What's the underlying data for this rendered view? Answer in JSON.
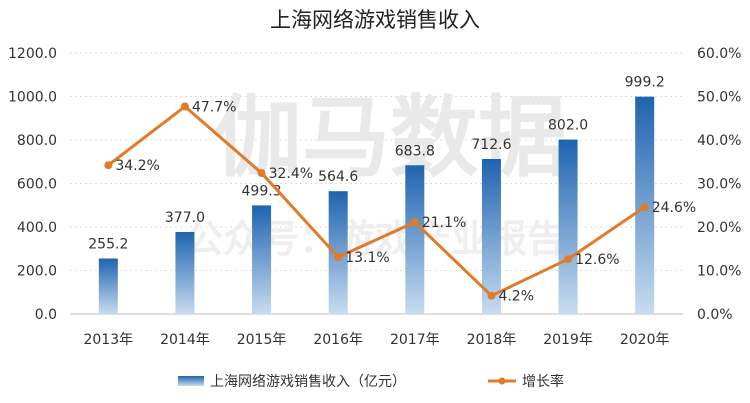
{
  "chart_data": {
    "type": "bar+line",
    "title": "上海网络游戏销售收入",
    "categories": [
      "2013年",
      "2014年",
      "2015年",
      "2016年",
      "2017年",
      "2018年",
      "2019年",
      "2020年"
    ],
    "series": [
      {
        "name": "上海网络游戏销售收入（亿元）",
        "type": "bar",
        "axis": "left",
        "values": [
          255.2,
          377.0,
          499.3,
          564.6,
          683.8,
          712.6,
          802.0,
          999.2
        ],
        "labels": [
          "255.2",
          "377.0",
          "499.3",
          "564.6",
          "683.8",
          "712.6",
          "802.0",
          "999.2"
        ],
        "color": "#2166b3"
      },
      {
        "name": "增长率",
        "type": "line",
        "axis": "right",
        "values": [
          34.2,
          47.7,
          32.4,
          13.1,
          21.1,
          4.2,
          12.6,
          24.6
        ],
        "labels": [
          "34.2%",
          "47.7%",
          "32.4%",
          "13.1%",
          "21.1%",
          "4.2%",
          "12.6%",
          "24.6%"
        ],
        "color": "#e07b2a"
      }
    ],
    "y_left": {
      "min": 0,
      "max": 1200,
      "ticks": [
        "0.0",
        "200.0",
        "400.0",
        "600.0",
        "800.0",
        "1000.0",
        "1200.0"
      ]
    },
    "y_right": {
      "min": 0,
      "max": 60,
      "ticks": [
        "0.0%",
        "10.0%",
        "20.0%",
        "30.0%",
        "40.0%",
        "50.0%",
        "60.0%"
      ]
    },
    "grid": true,
    "legend_position": "bottom"
  },
  "watermark": {
    "main": "伽马数据",
    "sub": "公众号：游戏产业报告"
  }
}
